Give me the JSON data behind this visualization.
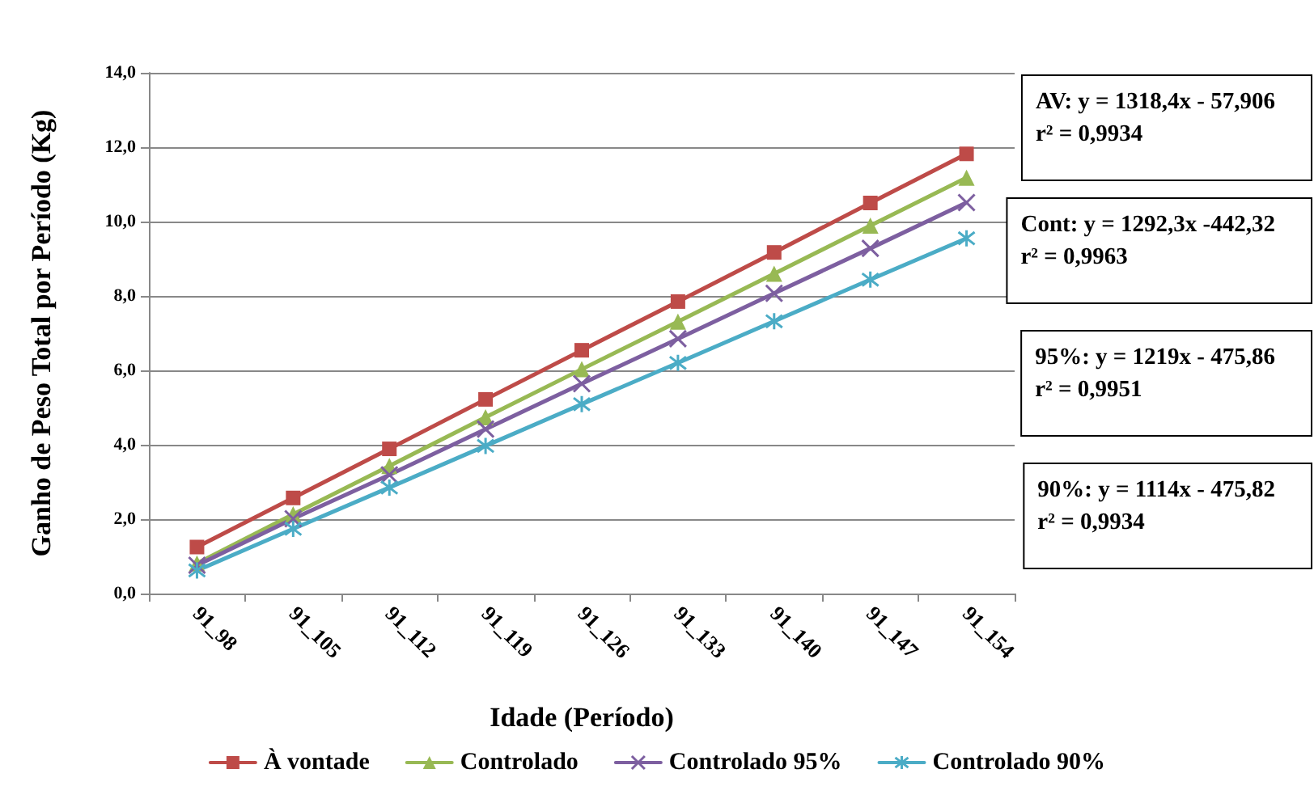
{
  "chart_data": {
    "type": "line",
    "xlabel": "Idade (Período)",
    "ylabel": "Ganho de Peso Total por Período (Kg)",
    "categories": [
      "91_98",
      "91_105",
      "91_112",
      "91_119",
      "91_126",
      "91_133",
      "91_140",
      "91_147",
      "91_154"
    ],
    "series": [
      {
        "name": "À vontade",
        "color": "#be4b48",
        "marker": "square",
        "values": [
          1.25,
          2.57,
          3.89,
          5.22,
          6.54,
          7.85,
          9.17,
          10.5,
          11.82
        ]
      },
      {
        "name": "Controlado",
        "color": "#98b954",
        "marker": "triangle",
        "values": [
          0.81,
          2.13,
          3.43,
          4.74,
          6.03,
          7.31,
          8.6,
          9.89,
          11.18
        ]
      },
      {
        "name": "Controlado 95%",
        "color": "#7d5fa0",
        "marker": "cross",
        "values": [
          0.76,
          2.01,
          3.19,
          4.42,
          5.64,
          6.85,
          8.07,
          9.28,
          10.51
        ]
      },
      {
        "name": "Controlado 90%",
        "color": "#4bacc6",
        "marker": "cross",
        "values": [
          0.62,
          1.74,
          2.85,
          3.97,
          5.09,
          6.2,
          7.32,
          8.44,
          9.55
        ]
      }
    ],
    "ylim": [
      0,
      14
    ],
    "yticks": [
      {
        "value": 0,
        "label": "0,0"
      },
      {
        "value": 2,
        "label": "2,0"
      },
      {
        "value": 4,
        "label": "4,0"
      },
      {
        "value": 6,
        "label": "6,0"
      },
      {
        "value": 8,
        "label": "8,0"
      },
      {
        "value": 10,
        "label": "10,0"
      },
      {
        "value": 12,
        "label": "12,0"
      },
      {
        "value": 14,
        "label": "14,0"
      }
    ],
    "annotations": [
      "AV: y = 1318,4x - 57,906\nr² = 0,9934",
      "Cont: y = 1292,3x -442,32\nr² = 0,9963",
      "95%: y = 1219x - 475,86\nr² = 0,9951",
      "90%: y = 1114x - 475,82\nr² = 0,9934"
    ],
    "grid": "y",
    "legend": "bottom",
    "line_style": "solid"
  }
}
